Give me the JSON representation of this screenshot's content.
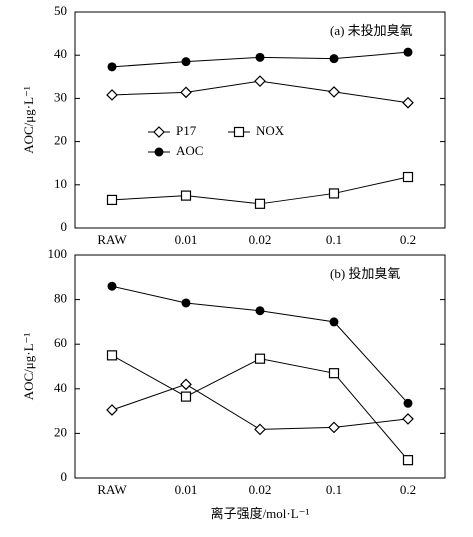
{
  "chart_data": [
    {
      "type": "line",
      "annotation": "(a) 未投加臭氧",
      "ylabel": "AOC/μg·L⁻¹",
      "categories": [
        "RAW",
        "0.01",
        "0.02",
        "0.1",
        "0.2"
      ],
      "series": [
        {
          "name": "P17",
          "color": "#000000",
          "marker": "diamond",
          "values": [
            30.8,
            31.4,
            34,
            31.5,
            29
          ]
        },
        {
          "name": "NOX",
          "color": "#000000",
          "marker": "square",
          "values": [
            6.5,
            7.5,
            5.6,
            8,
            11.8
          ]
        },
        {
          "name": "AOC",
          "color": "#000000",
          "marker": "circle",
          "values": [
            37.3,
            38.5,
            39.5,
            39.2,
            40.7
          ]
        }
      ],
      "ylim": [
        0,
        50
      ],
      "yticks": [
        0,
        10,
        20,
        30,
        40,
        50
      ],
      "legend": "center-left"
    },
    {
      "type": "line",
      "annotation": "(b) 投加臭氧",
      "ylabel": "AOC/μg·L⁻¹",
      "xlabel": "离子强度/mol·L⁻¹",
      "categories": [
        "RAW",
        "0.01",
        "0.02",
        "0.1",
        "0.2"
      ],
      "series": [
        {
          "name": "P17",
          "color": "#000000",
          "marker": "diamond",
          "values": [
            30.5,
            42,
            21.8,
            22.7,
            26.5
          ]
        },
        {
          "name": "NOX",
          "color": "#000000",
          "marker": "square",
          "values": [
            55,
            36.5,
            53.5,
            47,
            8
          ]
        },
        {
          "name": "AOC",
          "color": "#000000",
          "marker": "circle",
          "values": [
            86,
            78.5,
            75,
            70,
            33.5
          ]
        }
      ],
      "ylim": [
        0,
        100
      ],
      "yticks": [
        0,
        20,
        40,
        60,
        80,
        100
      ],
      "legend": "none"
    }
  ]
}
